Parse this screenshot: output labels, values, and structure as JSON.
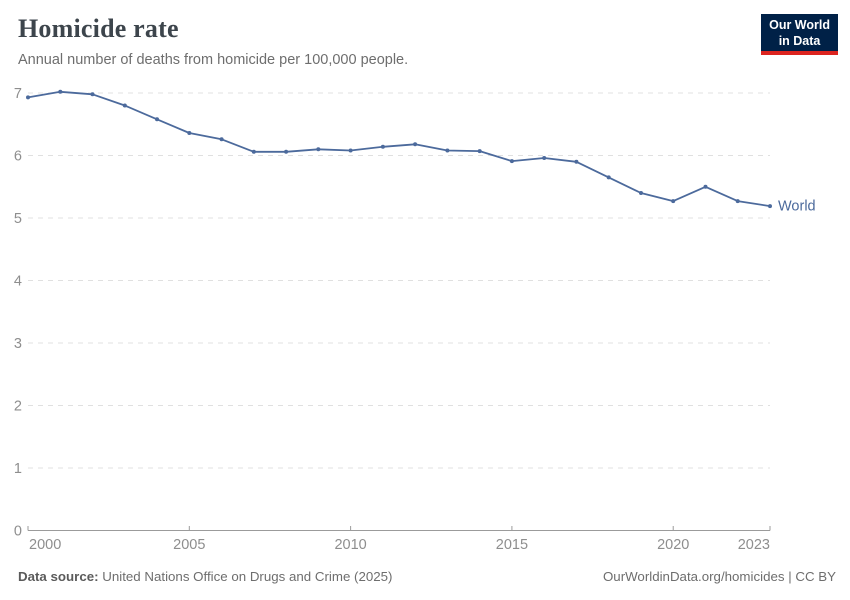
{
  "header": {
    "title": "Homicide rate",
    "subtitle": "Annual number of deaths from homicide per 100,000 people.",
    "logo": {
      "line1": "Our World",
      "line2": "in Data",
      "bg_color": "#002147",
      "accent_color": "#dc241f"
    }
  },
  "chart_data": {
    "type": "line",
    "title": "Homicide rate",
    "subtitle": "Annual number of deaths from homicide per 100,000 people.",
    "xlabel": "",
    "ylabel": "",
    "xlim": [
      2000,
      2023
    ],
    "ylim": [
      0,
      7.3
    ],
    "x_ticks": [
      2000,
      2005,
      2010,
      2015,
      2020,
      2023
    ],
    "y_ticks": [
      0,
      1,
      2,
      3,
      4,
      5,
      6,
      7
    ],
    "grid": "horizontal-dashed",
    "legend_position": "end-of-line-label",
    "series": [
      {
        "name": "World",
        "color": "#4c6a9c",
        "x": [
          2000,
          2001,
          2002,
          2003,
          2004,
          2005,
          2006,
          2007,
          2008,
          2009,
          2010,
          2011,
          2012,
          2013,
          2014,
          2015,
          2016,
          2017,
          2018,
          2019,
          2020,
          2021,
          2022,
          2023
        ],
        "y": [
          6.93,
          7.02,
          6.98,
          6.8,
          6.58,
          6.36,
          6.26,
          6.06,
          6.06,
          6.1,
          6.08,
          6.14,
          6.18,
          6.08,
          6.07,
          5.91,
          5.96,
          5.9,
          5.65,
          5.4,
          5.27,
          5.5,
          5.27,
          5.19
        ]
      }
    ]
  },
  "footer": {
    "source_label": "Data source:",
    "source_text": " United Nations Office on Drugs and Crime (2025)",
    "attribution": "OurWorldinData.org/homicides | CC BY"
  },
  "colors": {
    "line": "#4c6a9c",
    "grid": "#e0e0e0",
    "axis": "#9b9b9b",
    "tick_label": "#8e8e8e",
    "title": "#3d454c",
    "subtitle": "#6e6e6e"
  }
}
